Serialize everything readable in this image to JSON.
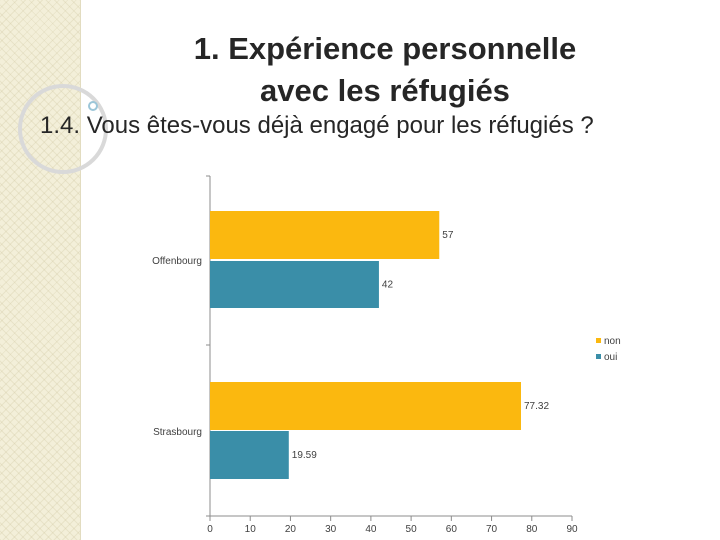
{
  "slide": {
    "title_line1": "1. Expérience personnelle",
    "title_line2": "avec les réfugiés",
    "subtitle": "1.4.  Vous êtes-vous déjà engagé pour les réfugiés ?"
  },
  "colors": {
    "non": "#fbb80f",
    "oui": "#3a8ea8",
    "axis": "#8c8c8c",
    "side_strip": "#f3efd9"
  },
  "chart_data": {
    "type": "bar",
    "orientation": "horizontal",
    "categories": [
      "Offenbourg",
      "Strasbourg"
    ],
    "series": [
      {
        "name": "non",
        "values": [
          57,
          77.32
        ]
      },
      {
        "name": "oui",
        "values": [
          42,
          19.59
        ]
      }
    ],
    "xlim": [
      0,
      90
    ],
    "x_ticks": [
      0,
      10,
      20,
      30,
      40,
      50,
      60,
      70,
      80,
      90
    ],
    "data_labels": [
      [
        "57",
        "42"
      ],
      [
        "77.32",
        "19.59"
      ]
    ],
    "legend": [
      "non",
      "oui"
    ],
    "legend_position": "right",
    "grid": false
  }
}
